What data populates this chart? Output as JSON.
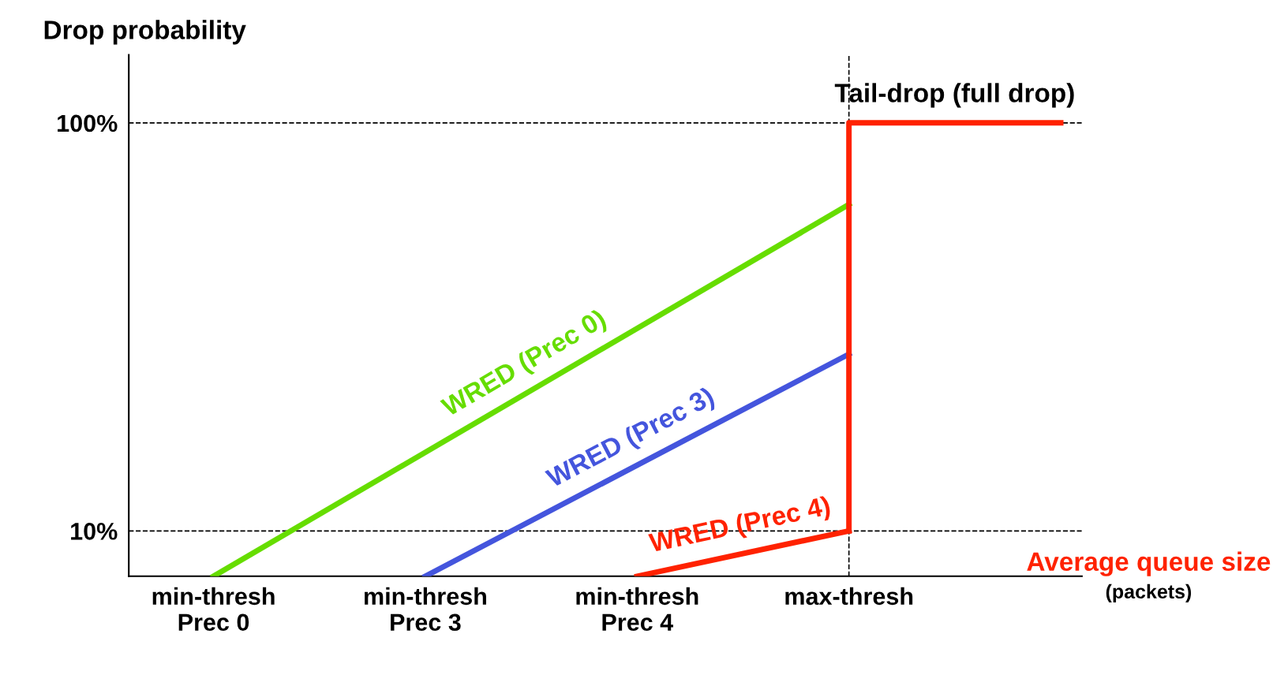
{
  "chart_data": {
    "type": "line",
    "ylabel": "Drop probability",
    "xlabel": "Average queue size",
    "annotations": [
      "(packets)"
    ],
    "categories": [
      "min-thresh\nPrec 0",
      "min-thresh\nPrec 3",
      "min-thresh\nPrec 4",
      "max-thresh",
      null
    ],
    "ylim": [
      0,
      115
    ],
    "yticks": [
      {
        "value": 10,
        "label": "10%"
      },
      {
        "value": 100,
        "label": "100%"
      }
    ],
    "grid": false,
    "legend": false,
    "line_style": "solid",
    "marker": "none",
    "ref_lines": [
      {
        "axis": "y",
        "value": 100,
        "line_style": "dashed",
        "color": "#000000"
      },
      {
        "axis": "y",
        "value": 10,
        "line_style": "dashed",
        "color": "#000000"
      },
      {
        "axis": "x",
        "value": "max-thresh",
        "line_style": "dashed",
        "color": "#000000"
      }
    ],
    "series": [
      {
        "name": "WRED (Prec 0)",
        "color": "#66dd00",
        "values": [
          0,
          null,
          null,
          82,
          null
        ]
      },
      {
        "name": "WRED (Prec 3)",
        "color": "#4455dd",
        "values": [
          null,
          0,
          null,
          49,
          null
        ]
      },
      {
        "name": "WRED (Prec 4)",
        "color": "#ff2200",
        "values": [
          null,
          null,
          0,
          10,
          null
        ]
      },
      {
        "name": "Tail-drop (full drop)",
        "type": "step",
        "color": "#ff2200",
        "values": [
          null,
          null,
          null,
          10,
          100
        ]
      }
    ]
  }
}
